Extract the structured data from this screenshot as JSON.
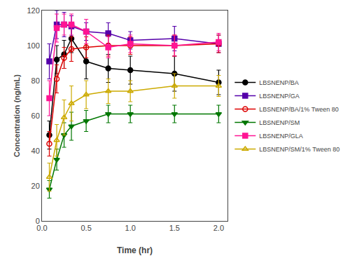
{
  "chart_data": {
    "type": "line",
    "x_label": "Time (hr)",
    "y_label": "Concentration (ng/mL)",
    "x": [
      0.083,
      0.167,
      0.25,
      0.333,
      0.5,
      0.75,
      1.0,
      1.5,
      2.0
    ],
    "series": [
      {
        "name": "LBSNENP/BA",
        "color": "#000000",
        "marker": "circle",
        "values": [
          49,
          92,
          95,
          104,
          91,
          87,
          86,
          84,
          79
        ],
        "errors": [
          8,
          8,
          8,
          8,
          10,
          8,
          8,
          10,
          7
        ]
      },
      {
        "name": "LBSNENP/GA",
        "color": "#5500aa",
        "marker": "square",
        "values": [
          91,
          112,
          112,
          111,
          108,
          107,
          103,
          104,
          101
        ],
        "errors": [
          10,
          8,
          7,
          6,
          5,
          6,
          5,
          7,
          5
        ]
      },
      {
        "name": "LBSNENP/BA/1% Tween 80",
        "color": "#dd0000",
        "marker": "circle-open",
        "values": [
          44,
          81,
          93,
          98,
          99,
          100,
          100,
          100,
          101
        ],
        "errors": [
          7,
          8,
          6,
          7,
          6,
          6,
          5,
          6,
          5
        ]
      },
      {
        "name": "LBSNENP/SM",
        "color": "#007700",
        "marker": "triangle-down",
        "values": [
          18,
          35,
          49,
          54,
          57,
          61,
          61,
          61,
          61
        ],
        "errors": [
          5,
          6,
          7,
          8,
          6,
          5,
          5,
          5,
          5
        ]
      },
      {
        "name": "LBSNENP/GLA",
        "color": "#ff1493",
        "marker": "square",
        "values": [
          70,
          110,
          112,
          112,
          108,
          99,
          101,
          100,
          102
        ],
        "errors": [
          10,
          8,
          6,
          6,
          7,
          6,
          5,
          6,
          5
        ]
      },
      {
        "name": "LBSNENP/SM/1% Tween 80",
        "color": "#ccaa00",
        "marker": "triangle-up-open",
        "values": [
          25,
          46,
          59,
          67,
          72,
          74,
          74,
          77,
          77
        ],
        "errors": [
          8,
          9,
          10,
          10,
          8,
          7,
          6,
          7,
          6
        ]
      }
    ],
    "xlim": [
      0.0,
      2.1
    ],
    "xticks": [
      {
        "value": 0.0,
        "label": "0.0"
      },
      0.5,
      {
        "value": 1.0,
        "label": "1.0"
      },
      1.5,
      {
        "value": 2.0,
        "label": "2.0"
      }
    ],
    "ylim": [
      0,
      120
    ],
    "yticks": [
      0,
      20,
      40,
      60,
      80,
      100,
      120
    ],
    "grid": false,
    "legend": "right"
  }
}
